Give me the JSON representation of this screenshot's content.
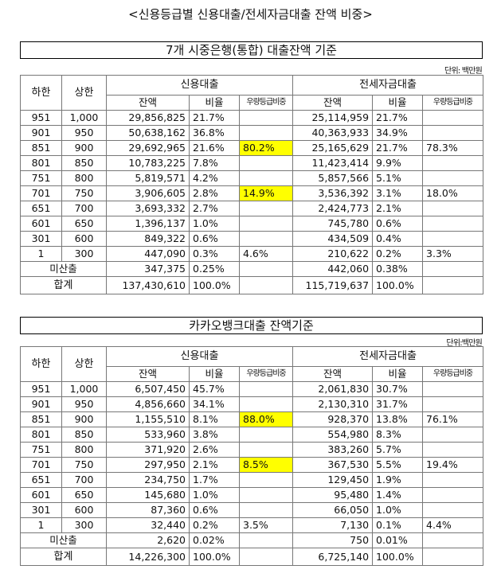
{
  "page_title": "<신용등급별 신용대출/전세자금대출 잔액 비중>",
  "highlight_color": "#ffff00",
  "tables": [
    {
      "title": "7개 시중은행(통합) 대출잔액 기준",
      "unit": "단위: 백만원",
      "headers": {
        "lower": "하한",
        "upper": "상한",
        "credit": "신용대출",
        "jeonse": "전세자금대출",
        "balance": "잔액",
        "ratio": "비율",
        "share": "우량등급비중"
      },
      "rows": [
        {
          "lower": "951",
          "upper": "1,000",
          "c_bal": "29,856,825",
          "c_ratio": "21.7%",
          "c_share": "",
          "j_bal": "25,114,959",
          "j_ratio": "21.7%",
          "j_share": ""
        },
        {
          "lower": "901",
          "upper": "950",
          "c_bal": "50,638,162",
          "c_ratio": "36.8%",
          "c_share": "",
          "j_bal": "40,363,933",
          "j_ratio": "34.9%",
          "j_share": ""
        },
        {
          "lower": "851",
          "upper": "900",
          "c_bal": "29,692,965",
          "c_ratio": "21.6%",
          "c_share": "80.2%",
          "c_hl": true,
          "j_bal": "25,165,629",
          "j_ratio": "21.7%",
          "j_share": "78.3%"
        },
        {
          "lower": "801",
          "upper": "850",
          "c_bal": "10,783,225",
          "c_ratio": "7.8%",
          "c_share": "",
          "j_bal": "11,423,414",
          "j_ratio": "9.9%",
          "j_share": ""
        },
        {
          "lower": "751",
          "upper": "800",
          "c_bal": "5,819,571",
          "c_ratio": "4.2%",
          "c_share": "",
          "j_bal": "5,857,566",
          "j_ratio": "5.1%",
          "j_share": ""
        },
        {
          "lower": "701",
          "upper": "750",
          "c_bal": "3,906,605",
          "c_ratio": "2.8%",
          "c_share": "14.9%",
          "c_hl": true,
          "j_bal": "3,536,392",
          "j_ratio": "3.1%",
          "j_share": "18.0%"
        },
        {
          "lower": "651",
          "upper": "700",
          "c_bal": "3,693,332",
          "c_ratio": "2.7%",
          "c_share": "",
          "j_bal": "2,424,773",
          "j_ratio": "2.1%",
          "j_share": ""
        },
        {
          "lower": "601",
          "upper": "650",
          "c_bal": "1,396,137",
          "c_ratio": "1.0%",
          "c_share": "",
          "j_bal": "745,780",
          "j_ratio": "0.6%",
          "j_share": ""
        },
        {
          "lower": "301",
          "upper": "600",
          "c_bal": "849,322",
          "c_ratio": "0.6%",
          "c_share": "",
          "j_bal": "434,509",
          "j_ratio": "0.4%",
          "j_share": ""
        },
        {
          "lower": "1",
          "upper": "300",
          "c_bal": "447,090",
          "c_ratio": "0.3%",
          "c_share": "4.6%",
          "j_bal": "210,622",
          "j_ratio": "0.2%",
          "j_share": "3.3%"
        }
      ],
      "unrated": {
        "label": "미산출",
        "c_bal": "347,375",
        "c_ratio": "0.25%",
        "j_bal": "442,060",
        "j_ratio": "0.38%"
      },
      "total": {
        "label": "합계",
        "c_bal": "137,430,610",
        "c_ratio": "100.0%",
        "j_bal": "115,719,637",
        "j_ratio": "100.0%"
      }
    },
    {
      "title": "카카오뱅크대출 잔액기준",
      "unit": "단위:백만원",
      "headers": {
        "lower": "하한",
        "upper": "상한",
        "credit": "신용대출",
        "jeonse": "전세자금대출",
        "balance": "잔액",
        "ratio": "비율",
        "share": "우량등급비중"
      },
      "rows": [
        {
          "lower": "951",
          "upper": "1,000",
          "c_bal": "6,507,450",
          "c_ratio": "45.7%",
          "c_share": "",
          "j_bal": "2,061,830",
          "j_ratio": "30.7%",
          "j_share": ""
        },
        {
          "lower": "901",
          "upper": "950",
          "c_bal": "4,856,660",
          "c_ratio": "34.1%",
          "c_share": "",
          "j_bal": "2,130,310",
          "j_ratio": "31.7%",
          "j_share": ""
        },
        {
          "lower": "851",
          "upper": "900",
          "c_bal": "1,155,510",
          "c_ratio": "8.1%",
          "c_share": "88.0%",
          "c_hl": true,
          "j_bal": "928,370",
          "j_ratio": "13.8%",
          "j_share": "76.1%"
        },
        {
          "lower": "801",
          "upper": "850",
          "c_bal": "533,960",
          "c_ratio": "3.8%",
          "c_share": "",
          "j_bal": "554,980",
          "j_ratio": "8.3%",
          "j_share": ""
        },
        {
          "lower": "751",
          "upper": "800",
          "c_bal": "371,920",
          "c_ratio": "2.6%",
          "c_share": "",
          "j_bal": "383,260",
          "j_ratio": "5.7%",
          "j_share": ""
        },
        {
          "lower": "701",
          "upper": "750",
          "c_bal": "297,950",
          "c_ratio": "2.1%",
          "c_share": "8.5%",
          "c_hl": true,
          "j_bal": "367,530",
          "j_ratio": "5.5%",
          "j_share": "19.4%"
        },
        {
          "lower": "651",
          "upper": "700",
          "c_bal": "234,750",
          "c_ratio": "1.7%",
          "c_share": "",
          "j_bal": "129,450",
          "j_ratio": "1.9%",
          "j_share": ""
        },
        {
          "lower": "601",
          "upper": "650",
          "c_bal": "145,680",
          "c_ratio": "1.0%",
          "c_share": "",
          "j_bal": "95,480",
          "j_ratio": "1.4%",
          "j_share": ""
        },
        {
          "lower": "301",
          "upper": "600",
          "c_bal": "87,360",
          "c_ratio": "0.6%",
          "c_share": "",
          "j_bal": "66,050",
          "j_ratio": "1.0%",
          "j_share": ""
        },
        {
          "lower": "1",
          "upper": "300",
          "c_bal": "32,440",
          "c_ratio": "0.2%",
          "c_share": "3.5%",
          "j_bal": "7,130",
          "j_ratio": "0.1%",
          "j_share": "4.4%"
        }
      ],
      "unrated": {
        "label": "미산출",
        "c_bal": "2,620",
        "c_ratio": "0.02%",
        "j_bal": "750",
        "j_ratio": "0.01%"
      },
      "total": {
        "label": "합계",
        "c_bal": "14,226,300",
        "c_ratio": "100.0%",
        "j_bal": "6,725,140",
        "j_ratio": "100.0%"
      }
    }
  ]
}
